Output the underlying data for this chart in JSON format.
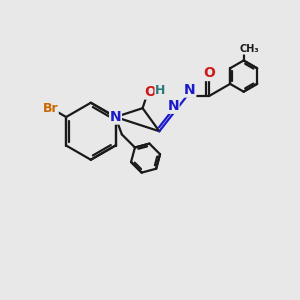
{
  "bg_color": "#e8e8e8",
  "bond_color": "#1a1a1a",
  "bond_width": 1.6,
  "atom_colors": {
    "N": "#1a1acc",
    "O": "#cc1a1a",
    "Br": "#cc6600",
    "H": "#2a7a7a",
    "C": "#1a1a1a"
  },
  "font_size_atom": 10,
  "font_size_small": 8
}
